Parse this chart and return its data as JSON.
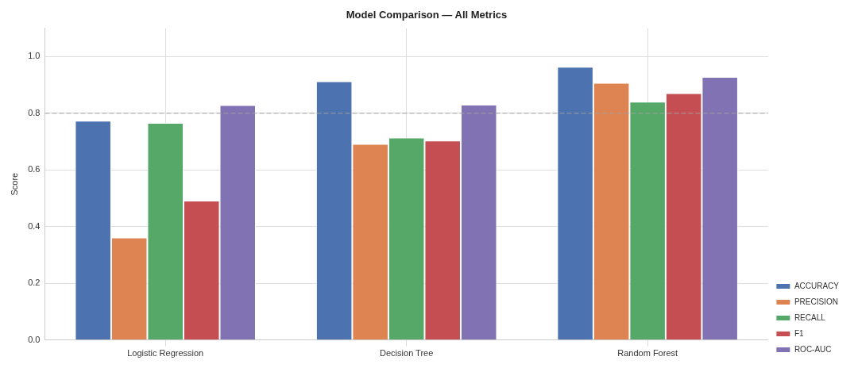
{
  "chart_data": {
    "type": "bar",
    "title": "Model Comparison — All Metrics",
    "ylabel": "Score",
    "categories": [
      "Logistic Regression",
      "Decision Tree",
      "Random Forest"
    ],
    "series": [
      {
        "name": "ACCURACY",
        "color": "#4c72b0",
        "values": [
          0.774,
          0.913,
          0.964
        ]
      },
      {
        "name": "PRECISION",
        "color": "#dd8452",
        "values": [
          0.362,
          0.692,
          0.907
        ]
      },
      {
        "name": "RECALL",
        "color": "#55a868",
        "values": [
          0.766,
          0.714,
          0.841
        ]
      },
      {
        "name": "F1",
        "color": "#c44e52",
        "values": [
          0.492,
          0.704,
          0.871
        ]
      },
      {
        "name": "ROC-AUC",
        "color": "#8172b3",
        "values": [
          0.829,
          0.83,
          0.928
        ]
      }
    ],
    "ylim": [
      0,
      1.1
    ],
    "yticks": [
      {
        "value": 0,
        "label": "0.0"
      },
      {
        "value": 0.2,
        "label": "0.2"
      },
      {
        "value": 0.4,
        "label": "0.4"
      },
      {
        "value": 0.6,
        "label": "0.6"
      },
      {
        "value": 0.8,
        "label": "0.8"
      },
      {
        "value": 1,
        "label": "1.0"
      }
    ],
    "ref_lines": [
      {
        "axis": "y",
        "value": 0.8,
        "label": null,
        "color": "#a0a0a0",
        "line_style": "dashed"
      }
    ],
    "grid": true,
    "legend": "bottom right"
  }
}
